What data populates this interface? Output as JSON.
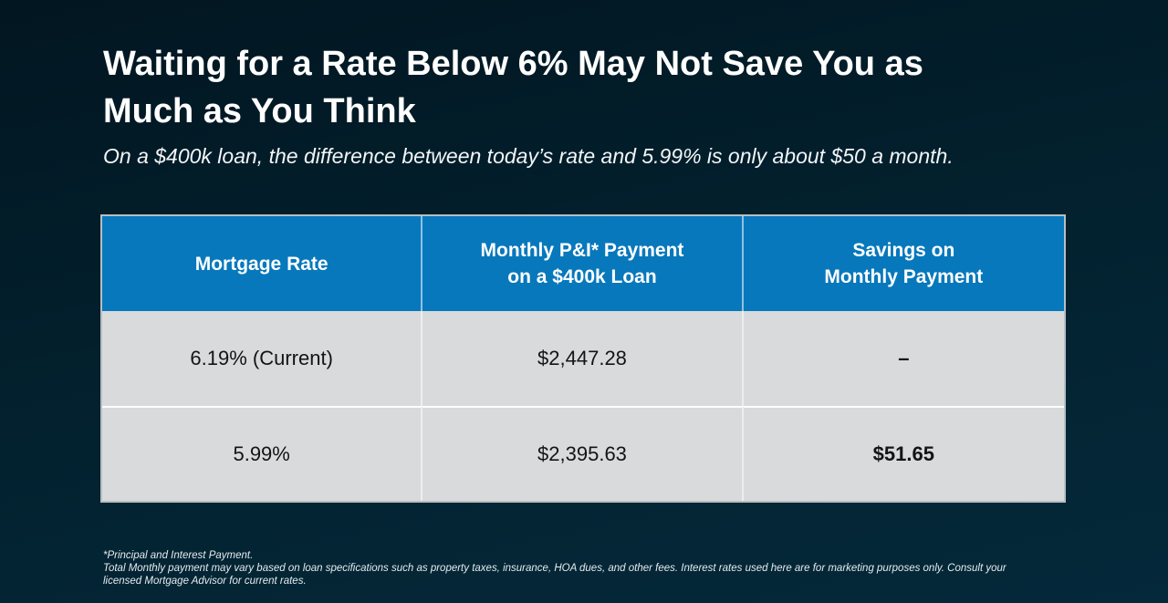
{
  "colors": {
    "bg-top": "#021621",
    "bg-bottom": "#04293a",
    "header-blue": "#0778bc",
    "row-gray": "#d9dadc",
    "table-border": "#b6bfc3",
    "cell-text": "#141414",
    "title-white": "#ffffff",
    "footnote-text": "#e4ecef"
  },
  "heading": {
    "title_lines": [
      "Waiting for a Rate Below 6% May Not Save You as",
      "Much as You Think"
    ],
    "subtitle": "On a $400k loan, the difference between today’s rate and 5.99% is only about $50 a month."
  },
  "table": {
    "headers": {
      "rate": {
        "line1": "Mortgage Rate"
      },
      "payment": {
        "line1": "Monthly P&I* Payment",
        "line2": "on a $400k Loan"
      },
      "savings": {
        "line1": "Savings on",
        "line2": "Monthly Payment"
      }
    },
    "rows": [
      {
        "rate": "6.19% (Current)",
        "payment": "$2,447.28",
        "savings": "–"
      },
      {
        "rate": "5.99%",
        "payment": "$2,395.63",
        "savings": "$51.65"
      }
    ]
  },
  "footnotes": [
    "*Principal and Interest Payment.",
    "Total Monthly payment may vary based on loan specifications such as property taxes, insurance, HOA dues, and other fees. Interest rates used here are for marketing purposes only. Consult your",
    "licensed Mortgage Advisor for current rates."
  ],
  "chart_data": {
    "type": "table",
    "title": "Waiting for a Rate Below 6% May Not Save You as Much as You Think",
    "subtitle": "On a $400k loan, the difference between today’s rate and 5.99% is only about $50 a month.",
    "columns": [
      "Mortgage Rate",
      "Monthly P&I* Payment on a $400k Loan",
      "Savings on Monthly Payment"
    ],
    "rows": [
      [
        "6.19% (Current)",
        "$2,447.28",
        "–"
      ],
      [
        "5.99%",
        "$2,395.63",
        "$51.65"
      ]
    ]
  }
}
